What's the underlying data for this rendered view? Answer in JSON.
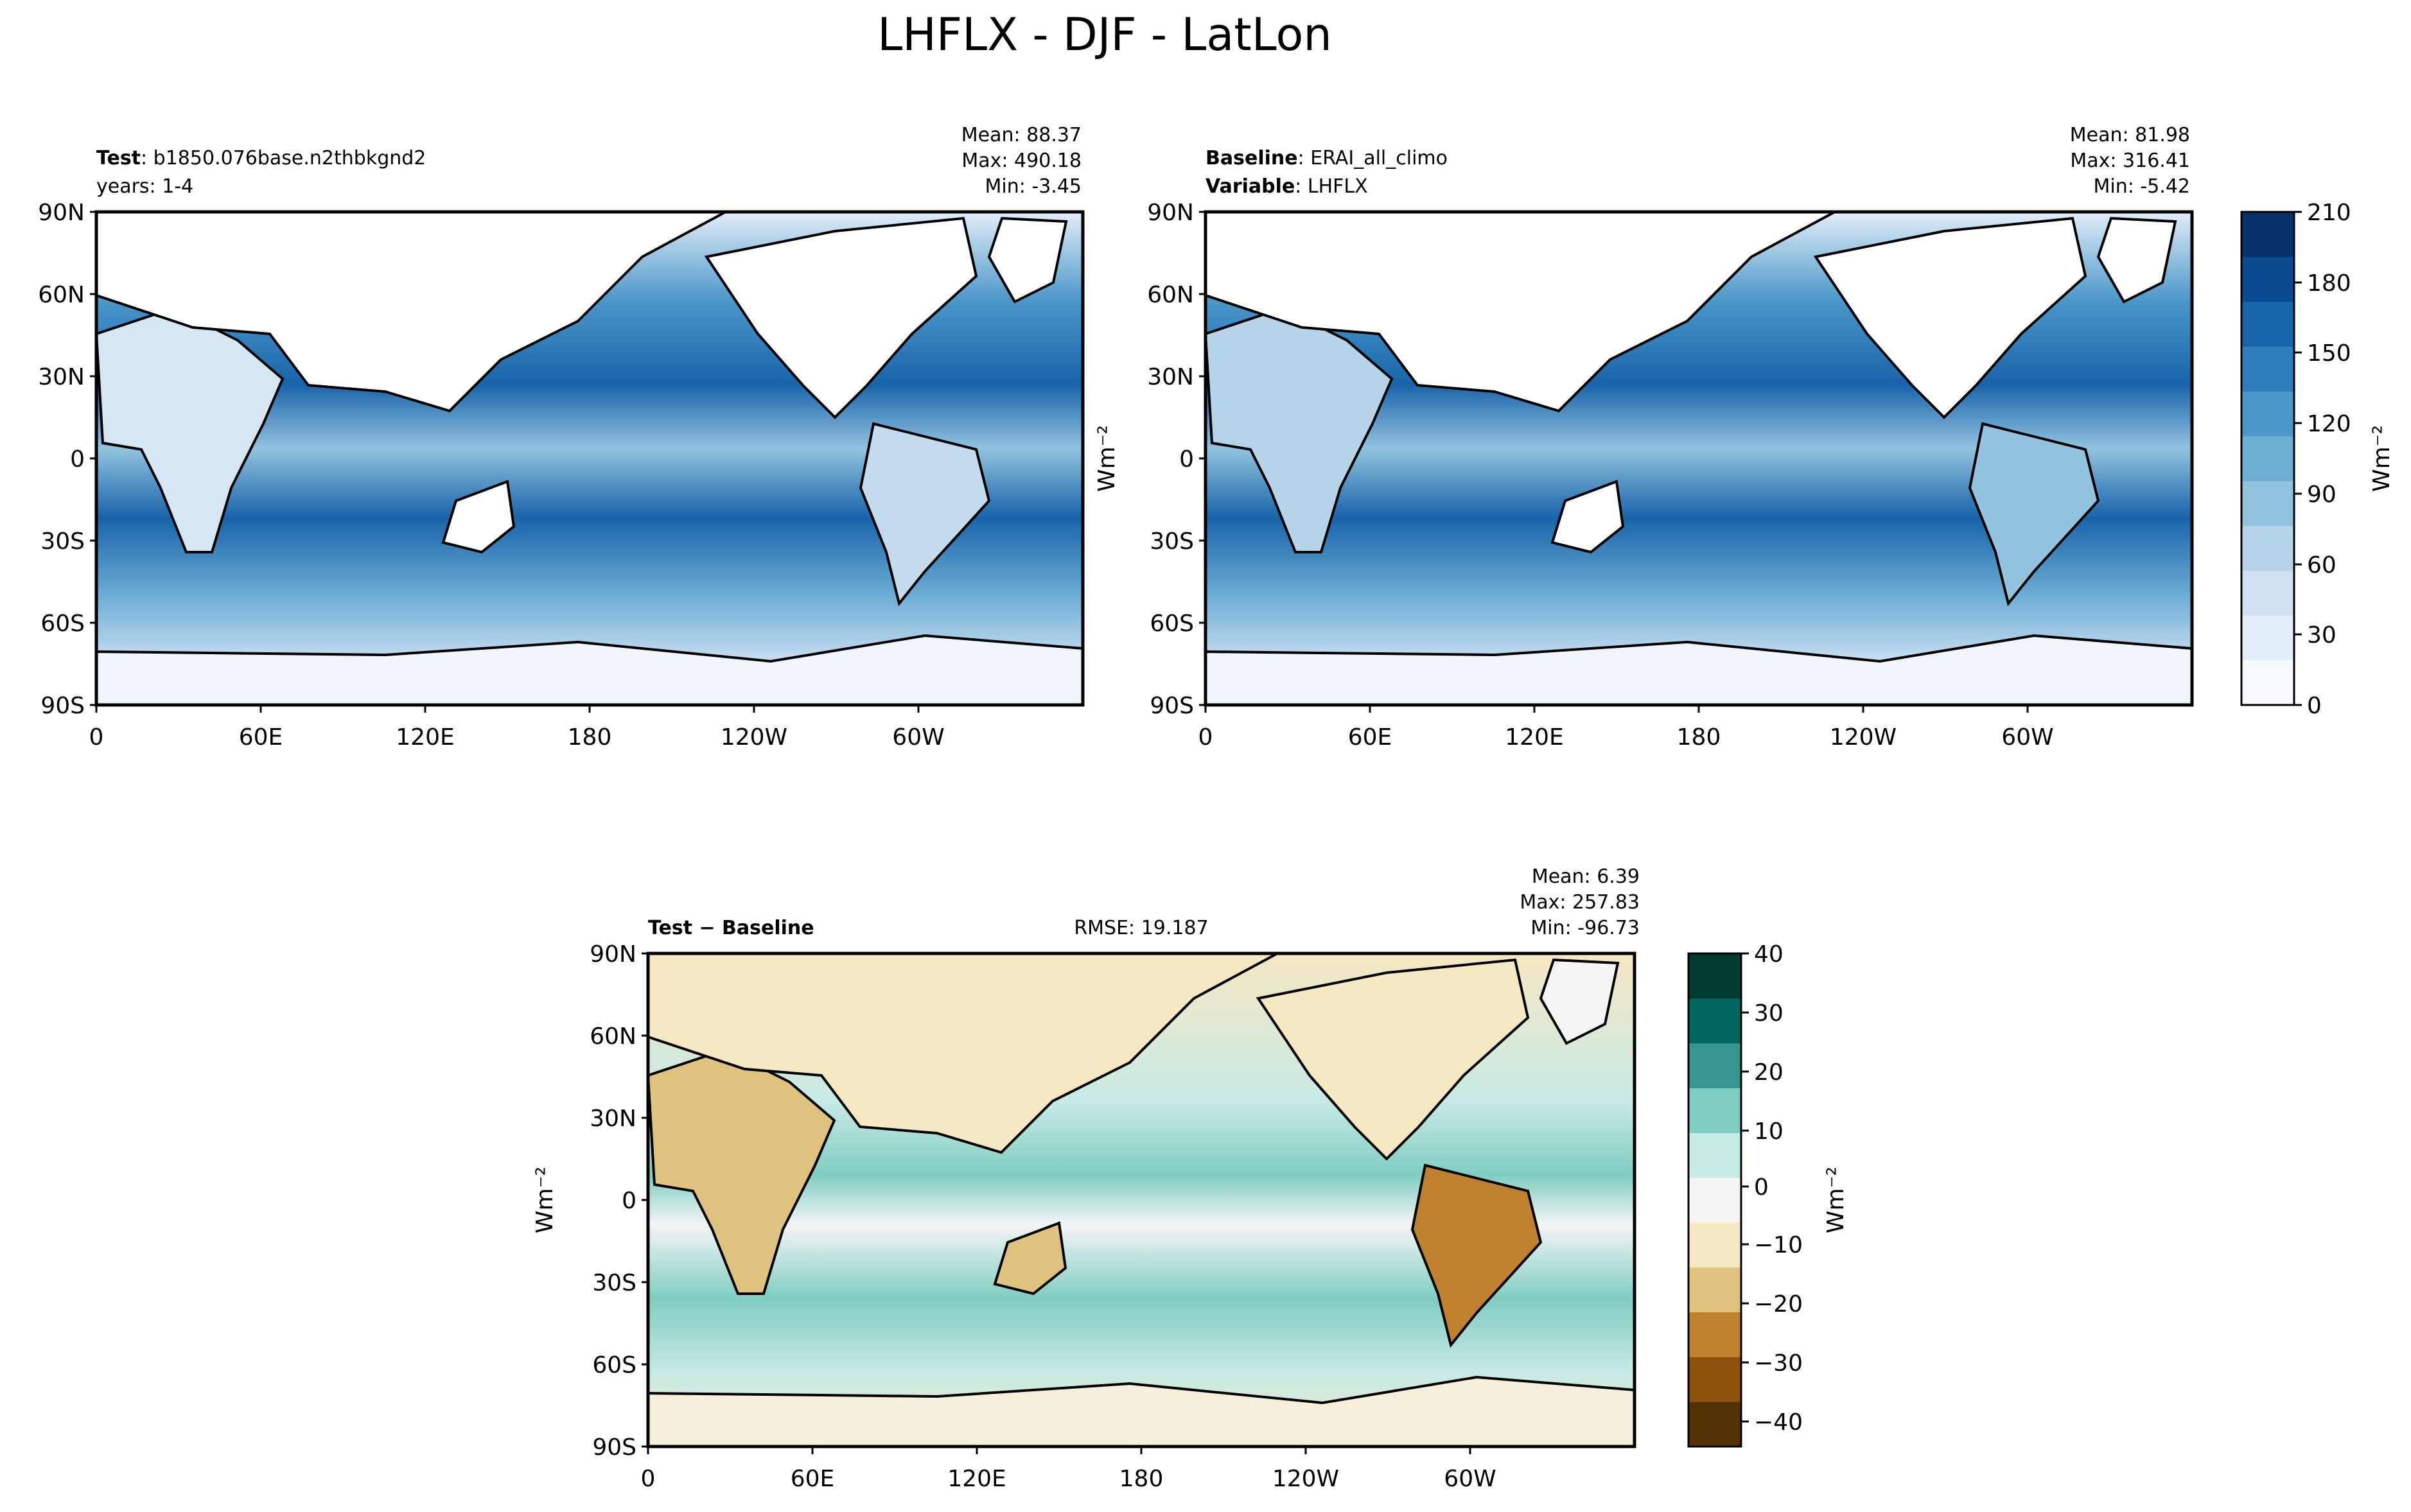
{
  "figure_title": "LHFLX - DJF - LatLon",
  "panels": {
    "test": {
      "label_bold": "Test",
      "label_rest": ": b1850.076base.n2thbkgnd2",
      "line2": "years: 1-4",
      "stats": [
        "Mean: 88.37",
        "Max: 490.18",
        "Min: -3.45"
      ]
    },
    "baseline": {
      "label_bold": "Baseline",
      "label_rest": ": ERAI_all_climo",
      "line2_bold": "Variable",
      "line2_rest": ": LHFLX",
      "stats": [
        "Mean: 81.98",
        "Max: 316.41",
        "Min: -5.42"
      ]
    },
    "diff": {
      "label_bold": "Test − Baseline",
      "rmse": "RMSE: 19.187",
      "stats": [
        "Mean:  6.39",
        "Max: 257.83",
        "Min: -96.73"
      ]
    }
  },
  "axes": {
    "lat_ticks": [
      "90N",
      "60N",
      "30N",
      "0",
      "30S",
      "60S",
      "90S"
    ],
    "lon_ticks": [
      "0",
      "60E",
      "120E",
      "180",
      "120W",
      "60W"
    ],
    "ylabel": "Wm⁻²"
  },
  "colorbars": {
    "main": {
      "ticks": [
        "210",
        "180",
        "150",
        "120",
        "90",
        "60",
        "30",
        "0"
      ],
      "label": "Wm⁻²",
      "range": [
        0,
        210
      ],
      "colors": [
        "#f7fbff",
        "#e3eef9",
        "#cfe1f2",
        "#b5d4e9",
        "#93c3df",
        "#6daed5",
        "#4b97c9",
        "#2f7ebc",
        "#1864aa",
        "#0a4a90",
        "#08306b"
      ]
    },
    "diff": {
      "ticks": [
        "40",
        "30",
        "20",
        "10",
        "0",
        "−10",
        "−20",
        "−30",
        "−40"
      ],
      "label": "Wm⁻²",
      "range": [
        -40,
        40
      ],
      "colors": [
        "#543005",
        "#8c510a",
        "#bf812d",
        "#dfc27d",
        "#f6e8c3",
        "#f5f5f5",
        "#c7eae5",
        "#80cdc1",
        "#35978f",
        "#01665e",
        "#003c30"
      ]
    }
  },
  "chart_data": [
    {
      "type": "heatmap",
      "title": "Test: b1850.076base.n2thbkgnd2",
      "variable": "LHFLX",
      "season": "DJF",
      "x_range": [
        "0",
        "360"
      ],
      "y_range": [
        "90S",
        "90N"
      ],
      "stats": {
        "mean": 88.37,
        "max": 490.18,
        "min": -3.45
      },
      "colorbar_range": [
        0,
        210
      ],
      "unit": "Wm⁻²"
    },
    {
      "type": "heatmap",
      "title": "Baseline: ERAI_all_climo",
      "variable": "LHFLX",
      "season": "DJF",
      "stats": {
        "mean": 81.98,
        "max": 316.41,
        "min": -5.42
      },
      "colorbar_range": [
        0,
        210
      ],
      "unit": "Wm⁻²"
    },
    {
      "type": "heatmap",
      "title": "Test − Baseline",
      "variable": "LHFLX",
      "season": "DJF",
      "rmse": 19.187,
      "stats": {
        "mean": 6.39,
        "max": 257.83,
        "min": -96.73
      },
      "colorbar_range": [
        -40,
        40
      ],
      "unit": "Wm⁻²"
    }
  ]
}
